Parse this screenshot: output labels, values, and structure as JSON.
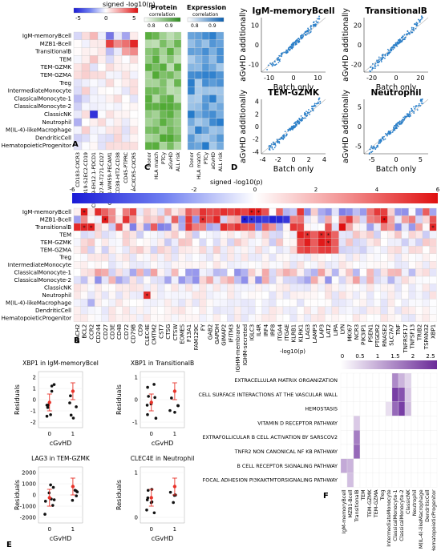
{
  "cell_types": [
    "IgM-memoryBcell",
    "MZB1-Bcell",
    "TransitionalB",
    "TEM",
    "TEM-GZMK",
    "TEM-GZMA",
    "Treg",
    "IntermediateMonocyte",
    "ClassicalMonocyte-1",
    "ClassicalMonocyte-2",
    "ClassicNK",
    "Neutrophil",
    "M(IL-4)-likeMacrophage",
    "DendriticCell",
    "HematopoieticProgenitor"
  ],
  "panelA": {
    "letter": "A",
    "legend_title": "signed -log10(p)",
    "legend_ticks": [
      "-5",
      "0",
      "5"
    ],
    "columns": [
      "CD183-CXCR3",
      "CD19-S2EC2-CD19",
      "CD279-EH12.1-PDCD1",
      "CD27-M-T271-CD27",
      "CD31-WM59-PECAM1",
      "CD38-HIT2-CD38",
      "CD45-PTPRC",
      "CXCR5-CXCR5"
    ]
  },
  "panelC": {
    "letter": "C",
    "protein_title": "Protein",
    "protein_sub": "correlation",
    "protein_ticks": [
      "0.8",
      "0.9"
    ],
    "expr_title": "Expression",
    "expr_sub": "correlation",
    "expr_ticks": [
      "0.8",
      "0.9"
    ],
    "columns": [
      "Donor",
      "HLA match",
      "PTCy",
      "aGvHD",
      "ALL risk"
    ]
  },
  "panelD": {
    "letter": "D",
    "ylabel": "aGvHD additionally",
    "xlabel": "Batch only",
    "plots": [
      {
        "title": "IgM-memoryBcell",
        "xticks": [
          "-10",
          "0",
          "10"
        ],
        "yticks": [
          "10",
          "0",
          "-10"
        ]
      },
      {
        "title": "TransitionalB",
        "xticks": [
          "-20",
          "0",
          "20"
        ],
        "yticks": [
          "20",
          "0",
          "-20"
        ]
      },
      {
        "title": "TEM-GZMK",
        "xticks": [
          "-4",
          "-2",
          "0",
          "2",
          "4"
        ],
        "yticks": [
          "4",
          "2",
          "0",
          "-2",
          "-4"
        ]
      },
      {
        "title": "Neutrophil",
        "xticks": [
          "-5",
          "0",
          "5"
        ],
        "yticks": [
          "5",
          "0",
          "-5"
        ]
      }
    ]
  },
  "panelB": {
    "letter": "B",
    "legend_title": "signed -log10(p)",
    "legend_ticks": [
      "-6",
      "-4",
      "-2",
      "0",
      "2",
      "4",
      "6"
    ],
    "genes": [
      "BACH2",
      "BCL2",
      "CCR2",
      "CD244",
      "CD27",
      "CD3E",
      "CD48",
      "CD72",
      "CD79B",
      "CD9",
      "CLEC4E",
      "CMTM2",
      "CST7",
      "CTSG",
      "CTSW",
      "EOMES",
      "F13A1",
      "FAM129C",
      "FY",
      "GAB2",
      "GAPDH",
      "GIMAP2",
      "IFITM3",
      "IGHM-membrane",
      "IGHM-secreted",
      "IGLC3",
      "IL4R",
      "IRF4",
      "IRF8",
      "ITGA4",
      "ITGAE",
      "KLRB1",
      "KLRK1",
      "LAG3",
      "LAMP3",
      "LAP3",
      "LAT2",
      "LIPA",
      "LYN",
      "MKI67",
      "NCR3",
      "PIK3IP1",
      "PSEN1",
      "PTGDR2",
      "RNASE2",
      "SLC7A7",
      "TNF",
      "TNFRSF17",
      "TNFSF13",
      "TRIB2",
      "TSPAN32",
      "XBP1"
    ]
  },
  "panelE": {
    "letter": "E",
    "ylabel": "Residuals",
    "xlabel": "cGvHD",
    "plots": [
      {
        "title": "XBP1 in IgM-memoryBcel",
        "yticks": [
          "2",
          "1",
          "0",
          "-1",
          "-2"
        ],
        "xticks": [
          "0",
          "1"
        ]
      },
      {
        "title": "XBP1 in TransitionalB",
        "yticks": [
          "1",
          "0",
          "-1"
        ],
        "xticks": [
          "0",
          "1"
        ]
      },
      {
        "title": "LAG3 in TEM-GZMK",
        "yticks": [
          "2000",
          "1000",
          "0",
          "-1000",
          "-2000"
        ],
        "xticks": [
          "0",
          "1"
        ]
      },
      {
        "title": "CLEC4E in Neutrophil",
        "yticks": [
          "1",
          "0"
        ],
        "xticks": [
          "0",
          "1"
        ]
      }
    ]
  },
  "panelF": {
    "letter": "F",
    "legend_title": "-log10(p)",
    "legend_ticks": [
      "0",
      "0.5",
      "1",
      "1.5",
      "2",
      "2.5"
    ],
    "pathways": [
      "EXTRACELLULAR MATRIX ORGANIZATION",
      "CELL SURFACE INTERACTIONS AT THE VASCULAR WALL",
      "HEMOSTASIS",
      "VITAMIN D RECEPTOR PATHWAY",
      "EXTRAFOLLICULAR B CELL ACTIVATION BY SARSCOV2",
      "TNFR2 NON CANONICAL NF KB PATHWAY",
      "B CELL RECEPTOR SIGNALING PATHWAY",
      "FOCAL ADHESION PI3KAKTMTORSIGNALING PATHWAY"
    ]
  },
  "colors": {
    "blue": "#2b3bd8",
    "red": "#e02020",
    "green": "#4caa2c",
    "exprblue": "#1f78c8",
    "purple": "#7b3fa3",
    "pointblue": "#2a7fc9",
    "meanred": "#e8332a"
  }
}
